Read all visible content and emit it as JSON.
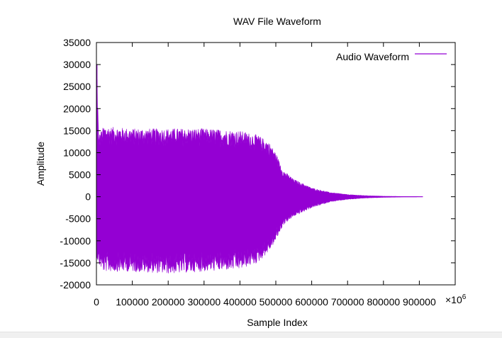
{
  "chart_data": {
    "type": "line",
    "title": "WAV File Waveform",
    "xlabel": "Sample Index",
    "ylabel": "Amplitude",
    "x_multiplier_label": "×10",
    "x_multiplier_exp": "6",
    "xlim": [
      0,
      1000000
    ],
    "ylim": [
      -20000,
      35000
    ],
    "x_ticks": [
      0,
      100000,
      200000,
      300000,
      400000,
      500000,
      600000,
      700000,
      800000,
      900000
    ],
    "x_tick_labels": [
      "0",
      "100000",
      "200000",
      "300000",
      "400000",
      "500000",
      "600000",
      "700000",
      "800000",
      "900000"
    ],
    "y_ticks": [
      -20000,
      -15000,
      -10000,
      -5000,
      0,
      5000,
      10000,
      15000,
      20000,
      25000,
      30000,
      35000
    ],
    "y_tick_labels": [
      "-20000",
      "-15000",
      "-10000",
      "-5000",
      "0",
      "5000",
      "10000",
      "15000",
      "20000",
      "25000",
      "30000",
      "35000"
    ],
    "grid": false,
    "legend_position": "top-right",
    "series": [
      {
        "name": "Audio Waveform",
        "color": "#9400d3",
        "envelope_x": [
          0,
          2000,
          6000,
          20000,
          100000,
          200000,
          300000,
          400000,
          450000,
          480000,
          500000,
          520000,
          550000,
          600000,
          650000,
          700000,
          750000,
          800000,
          850000,
          900000,
          910000
        ],
        "envelope_max": [
          30000,
          28000,
          14000,
          16000,
          15500,
          15500,
          15500,
          15000,
          14000,
          12500,
          10000,
          6000,
          4000,
          2000,
          1000,
          500,
          250,
          120,
          60,
          30,
          20
        ],
        "envelope_min": [
          -14000,
          -14000,
          -15500,
          -17000,
          -17000,
          -17500,
          -17000,
          -16500,
          -15000,
          -12500,
          -10000,
          -6500,
          -4500,
          -2500,
          -1200,
          -600,
          -300,
          -150,
          -70,
          -30,
          -20
        ]
      }
    ]
  }
}
